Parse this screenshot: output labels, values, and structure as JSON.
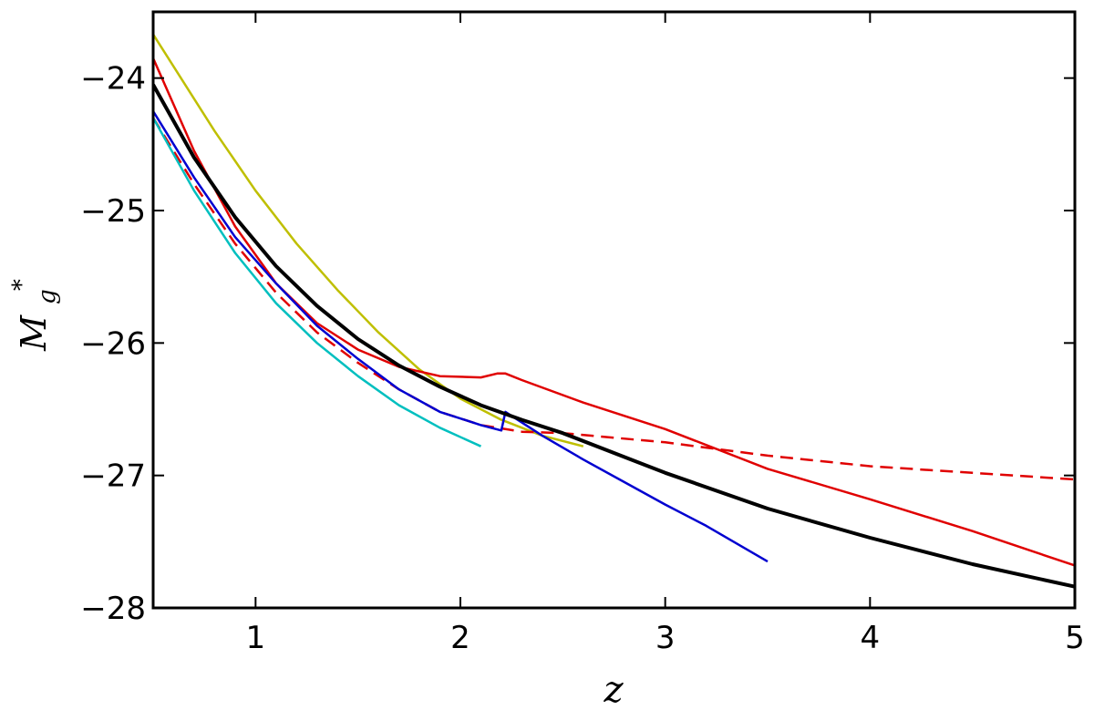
{
  "chart_data": {
    "type": "line",
    "xlabel": "z",
    "ylabel_main": "M",
    "ylabel_sub": "g",
    "ylabel_sup": "*",
    "xlim": [
      0.5,
      5.0
    ],
    "ylim": [
      -28.0,
      -23.5
    ],
    "y_inverted": true,
    "grid": false,
    "x_ticks": [
      1,
      2,
      3,
      4,
      5
    ],
    "x_tick_labels": [
      "1",
      "2",
      "3",
      "4",
      "5"
    ],
    "y_ticks": [
      -24,
      -25,
      -26,
      -27,
      -28
    ],
    "y_tick_labels": [
      "−24",
      "−25",
      "−26",
      "−27",
      "−28"
    ],
    "series": [
      {
        "color": "#bfbf00",
        "style": "solid",
        "width": 2.5,
        "x": [
          0.5,
          0.8,
          1.0,
          1.2,
          1.4,
          1.6,
          1.8,
          2.0,
          2.2,
          2.4,
          2.6
        ],
        "y": [
          -23.67,
          -24.4,
          -24.85,
          -25.25,
          -25.6,
          -25.92,
          -26.2,
          -26.42,
          -26.58,
          -26.7,
          -26.78
        ]
      },
      {
        "color": "#e00000",
        "style": "solid",
        "width": 2.5,
        "x": [
          0.5,
          0.7,
          0.9,
          1.1,
          1.3,
          1.5,
          1.7,
          1.9,
          2.1,
          2.18,
          2.22,
          2.3,
          2.6,
          3.0,
          3.5,
          4.0,
          4.5,
          5.0
        ],
        "y": [
          -23.85,
          -24.55,
          -25.12,
          -25.55,
          -25.85,
          -26.05,
          -26.18,
          -26.25,
          -26.26,
          -26.23,
          -26.23,
          -26.28,
          -26.45,
          -26.65,
          -26.95,
          -27.18,
          -27.42,
          -27.68
        ]
      },
      {
        "color": "#e00000",
        "style": "dashed",
        "width": 2.5,
        "x": [
          0.5,
          0.7,
          0.9,
          1.1,
          1.3,
          1.5,
          1.7,
          1.9,
          2.1,
          2.3,
          2.5,
          3.0,
          3.5,
          4.0,
          4.5,
          5.0
        ],
        "y": [
          -24.3,
          -24.8,
          -25.25,
          -25.62,
          -25.92,
          -26.15,
          -26.35,
          -26.52,
          -26.62,
          -26.67,
          -26.68,
          -26.75,
          -26.85,
          -26.93,
          -26.98,
          -27.03
        ]
      },
      {
        "color": "#0000d0",
        "style": "solid",
        "width": 2.5,
        "x": [
          0.5,
          0.7,
          0.9,
          1.1,
          1.3,
          1.5,
          1.7,
          1.9,
          2.1,
          2.2,
          2.22,
          2.4,
          2.6,
          2.8,
          3.0,
          3.2,
          3.5
        ],
        "y": [
          -24.25,
          -24.75,
          -25.2,
          -25.55,
          -25.87,
          -26.12,
          -26.35,
          -26.52,
          -26.62,
          -26.66,
          -26.52,
          -26.7,
          -26.88,
          -27.05,
          -27.22,
          -27.38,
          -27.65
        ]
      },
      {
        "color": "#00bfbf",
        "style": "solid",
        "width": 2.5,
        "x": [
          0.5,
          0.7,
          0.9,
          1.1,
          1.3,
          1.5,
          1.7,
          1.9,
          2.1
        ],
        "y": [
          -24.3,
          -24.85,
          -25.32,
          -25.7,
          -26.0,
          -26.25,
          -26.47,
          -26.64,
          -26.78
        ]
      },
      {
        "color": "#000000",
        "style": "solid",
        "width": 4,
        "x": [
          0.5,
          0.7,
          0.9,
          1.1,
          1.3,
          1.5,
          1.7,
          1.9,
          2.1,
          2.3,
          2.5,
          3.0,
          3.5,
          4.0,
          4.5,
          5.0
        ],
        "y": [
          -24.05,
          -24.6,
          -25.05,
          -25.42,
          -25.72,
          -25.97,
          -26.17,
          -26.33,
          -26.47,
          -26.58,
          -26.68,
          -26.98,
          -27.25,
          -27.47,
          -27.67,
          -27.84
        ]
      }
    ]
  }
}
